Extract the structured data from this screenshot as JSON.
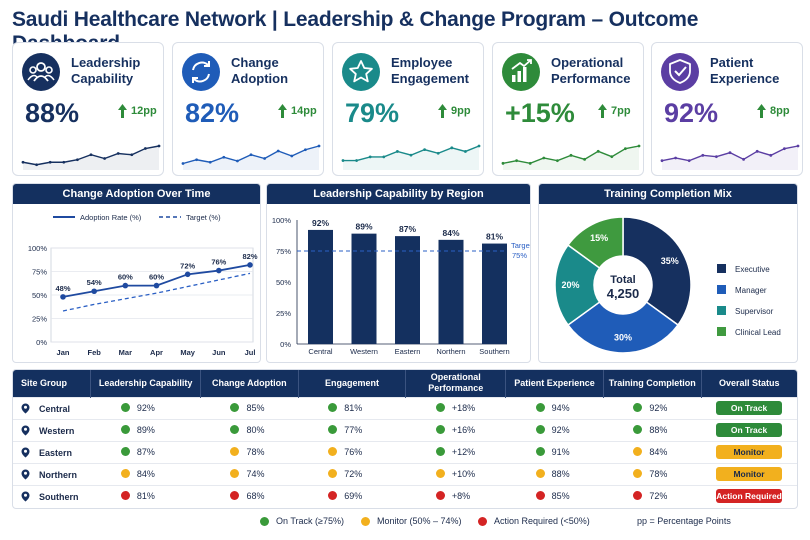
{
  "title": "Saudi Healthcare Network | Leadership & Change Program – Outcome Dashboard",
  "kpis": [
    {
      "label": "Leadership Capability",
      "value": "88%",
      "delta": "12pp",
      "color": "#16305f",
      "icon": "people-group-icon",
      "spark": [
        3,
        1,
        3,
        3,
        5,
        9,
        6,
        10,
        9,
        14,
        16
      ]
    },
    {
      "label": "Change Adoption",
      "value": "82%",
      "delta": "14pp",
      "color": "#1f5cb8",
      "icon": "refresh-cycle-icon",
      "spark": [
        2,
        5,
        3,
        7,
        4,
        9,
        6,
        12,
        8,
        13,
        16
      ]
    },
    {
      "label": "Employee Engagement",
      "value": "79%",
      "delta": "9pp",
      "color": "#1a8a8a",
      "icon": "star-icon",
      "spark": [
        3,
        3,
        5,
        5,
        8,
        6,
        9,
        7,
        10,
        8,
        11
      ]
    },
    {
      "label": "Operational Performance",
      "value": "+15%",
      "delta": "7pp",
      "color": "#2e8b3a",
      "icon": "bar-growth-icon",
      "spark": [
        2,
        4,
        2,
        6,
        4,
        8,
        5,
        11,
        7,
        13,
        15
      ]
    },
    {
      "label": "Patient Experience",
      "value": "92%",
      "delta": "8pp",
      "color": "#5b3ea3",
      "icon": "shield-check-icon",
      "spark": [
        4,
        6,
        4,
        8,
        7,
        10,
        5,
        11,
        8,
        13,
        15
      ]
    }
  ],
  "panels": {
    "adoption_title": "Change Adoption Over Time",
    "region_title": "Leadership Capability by Region",
    "mix_title": "Training Completion Mix"
  },
  "chart_data": [
    {
      "type": "line",
      "title": "Change Adoption Over Time",
      "x": [
        "Jan",
        "Feb",
        "Mar",
        "Apr",
        "May",
        "Jun",
        "Jul"
      ],
      "series": [
        {
          "name": "Adoption Rate (%)",
          "values": [
            48,
            54,
            60,
            60,
            72,
            76,
            82
          ]
        },
        {
          "name": "Target (%)",
          "values": [
            33,
            40,
            46,
            52,
            59,
            66,
            73
          ]
        }
      ],
      "yticks": [
        "100%",
        "75%",
        "50%",
        "25%",
        "0%"
      ],
      "ylim": [
        0,
        100
      ]
    },
    {
      "type": "bar",
      "title": "Leadership Capability by Region",
      "categories": [
        "Central",
        "Western",
        "Eastern",
        "Northern",
        "Southern"
      ],
      "values": [
        92,
        89,
        87,
        84,
        81
      ],
      "target": 75,
      "target_label_line1": "Target",
      "target_label_line2": "75%",
      "yticks": [
        "100%",
        "75%",
        "50%",
        "25%",
        "0%"
      ],
      "ylim": [
        0,
        100
      ]
    },
    {
      "type": "pie",
      "title": "Training Completion Mix",
      "center_label": "Total",
      "center_value": "4,250",
      "slices": [
        {
          "name": "Executive",
          "value": 35,
          "color": "#16305f"
        },
        {
          "name": "Manager",
          "value": 30,
          "color": "#1f5cb8"
        },
        {
          "name": "Supervisor",
          "value": 20,
          "color": "#1a8a8a"
        },
        {
          "name": "Clinical Lead",
          "value": 15,
          "color": "#3f9a3f"
        }
      ]
    }
  ],
  "table": {
    "headers": [
      "Site Group",
      "Leadership Capability",
      "Change Adoption",
      "Engagement",
      "Operational Performance",
      "Patient Experience",
      "Training Completion",
      "Overall Status"
    ],
    "rows": [
      {
        "site": "Central",
        "cells": [
          [
            "g",
            "92%"
          ],
          [
            "g",
            "85%"
          ],
          [
            "g",
            "81%"
          ],
          [
            "g",
            "+18%"
          ],
          [
            "g",
            "94%"
          ],
          [
            "g",
            "92%"
          ]
        ],
        "status": "On Track",
        "status_kind": "track"
      },
      {
        "site": "Western",
        "cells": [
          [
            "g",
            "89%"
          ],
          [
            "g",
            "80%"
          ],
          [
            "g",
            "77%"
          ],
          [
            "g",
            "+16%"
          ],
          [
            "g",
            "92%"
          ],
          [
            "g",
            "88%"
          ]
        ],
        "status": "On Track",
        "status_kind": "track"
      },
      {
        "site": "Eastern",
        "cells": [
          [
            "g",
            "87%"
          ],
          [
            "y",
            "78%"
          ],
          [
            "y",
            "76%"
          ],
          [
            "g",
            "+12%"
          ],
          [
            "g",
            "91%"
          ],
          [
            "y",
            "84%"
          ]
        ],
        "status": "Monitor",
        "status_kind": "monitor"
      },
      {
        "site": "Northern",
        "cells": [
          [
            "y",
            "84%"
          ],
          [
            "y",
            "74%"
          ],
          [
            "y",
            "72%"
          ],
          [
            "y",
            "+10%"
          ],
          [
            "y",
            "88%"
          ],
          [
            "y",
            "78%"
          ]
        ],
        "status": "Monitor",
        "status_kind": "monitor"
      },
      {
        "site": "Southern",
        "cells": [
          [
            "r",
            "81%"
          ],
          [
            "r",
            "68%"
          ],
          [
            "r",
            "69%"
          ],
          [
            "r",
            "+8%"
          ],
          [
            "r",
            "85%"
          ],
          [
            "r",
            "72%"
          ]
        ],
        "status": "Action Required",
        "status_kind": "action"
      }
    ]
  },
  "legend": {
    "on_track": "On Track (≥75%)",
    "monitor": "Monitor (50% – 74%)",
    "action": "Action Required (<50%)",
    "pp_note": "pp = Percentage Points"
  },
  "colors": {
    "green": "#3a9a3a",
    "yellow": "#f2b01e",
    "red": "#d42424",
    "navy": "#16305f"
  }
}
